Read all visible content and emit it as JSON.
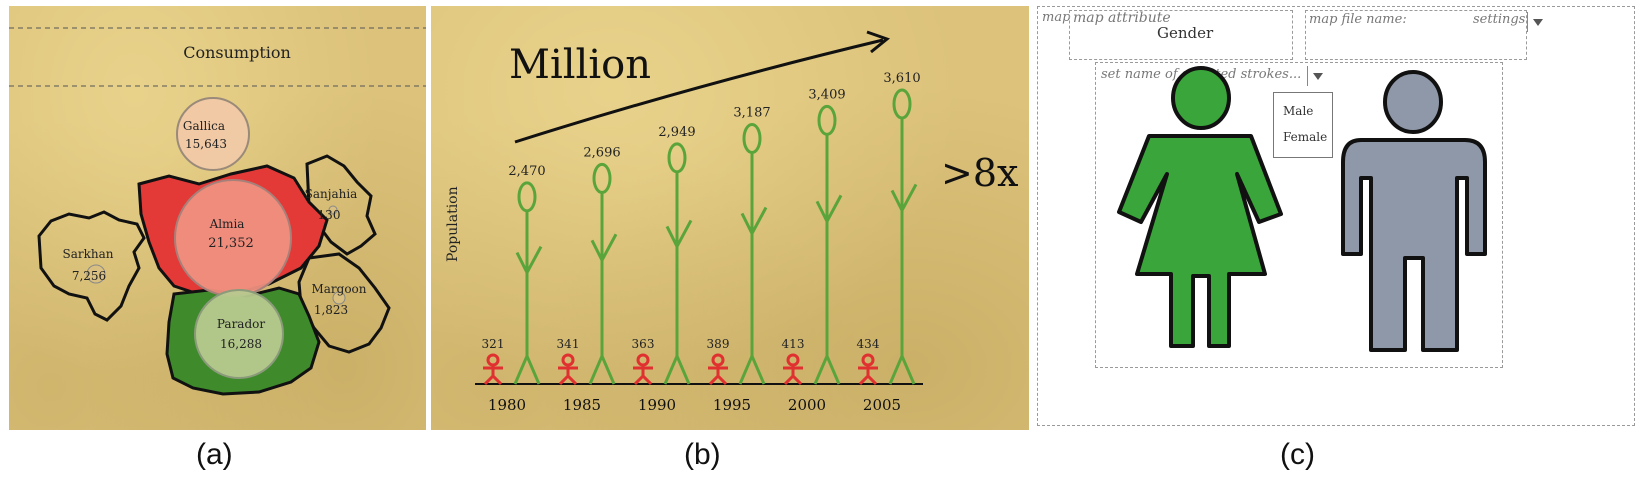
{
  "captions": {
    "a": "(a)",
    "b": "(b)",
    "c": "(c)"
  },
  "panel_a": {
    "title": "Consumption",
    "regions": [
      {
        "name": "Gallica",
        "value": "15,643",
        "color": "#f2c9a8"
      },
      {
        "name": "Almia",
        "value": "21,352",
        "color": "#ef9080"
      },
      {
        "name": "Sanjahia",
        "value": "130",
        "color": "#d9c080"
      },
      {
        "name": "Sarkhan",
        "value": "7,256",
        "color": "#d9c080"
      },
      {
        "name": "Margoon",
        "value": "1,823",
        "color": "#d9c080"
      },
      {
        "name": "Parador",
        "value": "16,288",
        "color": "#a9c07d"
      }
    ],
    "colors": {
      "almia_fill": "#e43a37",
      "parador_fill": "#3f8a2b"
    }
  },
  "panel_b": {
    "heading": "Million",
    "multiplier": ">8x",
    "ylabel": "Population",
    "colors": {
      "stalk": "#5aa53b",
      "figure": "#e03030"
    }
  },
  "chart_data": {
    "type": "bar",
    "ylabel": "Population",
    "categories": [
      "1980",
      "1985",
      "1990",
      "1995",
      "2000",
      "2005"
    ],
    "series": [
      {
        "values": [
          2470,
          2696,
          2949,
          3187,
          3409,
          3610
        ]
      },
      {
        "values": [
          321,
          341,
          363,
          389,
          413,
          434
        ]
      }
    ],
    "value_labels": {
      "large": [
        "2,470",
        "2,696",
        "2,949",
        "3,187",
        "3,409",
        "3,610"
      ],
      "small": [
        "321",
        "341",
        "363",
        "389",
        "413",
        "434"
      ]
    }
  },
  "panel_c": {
    "map_label": "map",
    "map_attribute_label": "map attribute",
    "map_attribute_value": "Gender",
    "map_file_label": "map file name:",
    "settings_label": "settings",
    "strokes_placeholder": "set name of selected strokes...",
    "options": [
      "Male",
      "Female"
    ],
    "colors": {
      "female": "#3aa53a",
      "male": "#8f98a8"
    }
  }
}
